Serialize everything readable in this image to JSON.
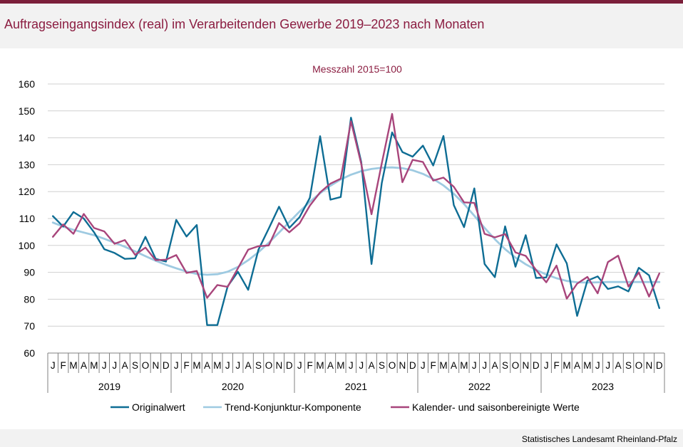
{
  "title": "Auftragseingangsindex (real) im Verarbeitenden Gewerbe 2019–2023 nach Monaten",
  "source": "Statistisches Landesamt Rheinland-Pfalz",
  "colors": {
    "original": "#0e6d94",
    "trend": "#9ecae1",
    "adjusted": "#a8457b",
    "title": "#8b1d41",
    "topbar": "#7b1f3a"
  },
  "chart_data": {
    "type": "line",
    "subtitle": "Messzahl 2015=100",
    "ylim": [
      60,
      160
    ],
    "yticks": [
      60,
      70,
      80,
      90,
      100,
      110,
      120,
      130,
      140,
      150,
      160
    ],
    "years": [
      "2019",
      "2020",
      "2021",
      "2022",
      "2023"
    ],
    "months": [
      "J",
      "F",
      "M",
      "A",
      "M",
      "J",
      "J",
      "A",
      "S",
      "O",
      "N",
      "D",
      "J",
      "F",
      "M",
      "A",
      "M",
      "J",
      "J",
      "A",
      "S",
      "O",
      "N",
      "D",
      "J",
      "F",
      "M",
      "A",
      "M",
      "J",
      "J",
      "A",
      "S",
      "O",
      "N",
      "D",
      "J",
      "F",
      "M",
      "A",
      "M",
      "J",
      "J",
      "A",
      "S",
      "O",
      "N",
      "D",
      "J",
      "F",
      "M",
      "A",
      "M",
      "J",
      "J",
      "A",
      "S",
      "O",
      "N",
      "D"
    ],
    "grid": true,
    "legend_position": "bottom",
    "series": [
      {
        "name": "Originalwert",
        "key": "original",
        "values": [
          110.9,
          107.0,
          112.4,
          110.0,
          104.9,
          98.6,
          97.2,
          95.0,
          95.2,
          103.2,
          95.0,
          94.0,
          109.5,
          103.3,
          107.6,
          70.4,
          70.4,
          84.8,
          90.2,
          83.5,
          98.4,
          106.3,
          114.4,
          106.5,
          110.5,
          117.7,
          140.6,
          117.0,
          118.0,
          147.5,
          131.0,
          93.1,
          123.2,
          142.0,
          134.7,
          133.0,
          137.1,
          129.7,
          140.7,
          115.0,
          106.8,
          121.2,
          93.1,
          88.2,
          107.1,
          92.1,
          103.8,
          87.9,
          88.1,
          100.4,
          93.3,
          73.8,
          86.9,
          88.5,
          83.8,
          84.8,
          82.9,
          91.7,
          88.9,
          76.7
        ]
      },
      {
        "name": "Trend-Konjunktur-Komponente",
        "key": "trend",
        "values": [
          108.5,
          107.0,
          105.8,
          104.8,
          103.8,
          102.5,
          101.0,
          99.5,
          97.8,
          96.0,
          94.3,
          92.8,
          91.5,
          90.3,
          89.4,
          89.1,
          89.3,
          90.2,
          92.0,
          94.5,
          97.5,
          101.0,
          104.8,
          108.7,
          112.6,
          116.2,
          119.4,
          122.2,
          124.5,
          126.3,
          127.6,
          128.4,
          128.9,
          129.0,
          128.7,
          127.9,
          126.6,
          124.7,
          122.3,
          119.2,
          115.4,
          111.0,
          106.5,
          102.3,
          98.6,
          95.5,
          93.0,
          90.9,
          89.2,
          87.8,
          86.8,
          86.3,
          86.2,
          86.3,
          86.4,
          86.4,
          86.4,
          86.4,
          86.4,
          86.4
        ]
      },
      {
        "name": "Kalender- und saisonbereinigte Werte",
        "key": "adjusted",
        "values": [
          103.2,
          107.8,
          104.3,
          111.7,
          106.5,
          105.2,
          100.6,
          102.0,
          96.5,
          99.2,
          94.5,
          94.7,
          96.4,
          89.8,
          90.5,
          80.5,
          85.3,
          84.6,
          91.5,
          98.4,
          99.7,
          100.0,
          108.3,
          104.9,
          108.2,
          114.8,
          119.7,
          123.0,
          124.8,
          146.1,
          130.3,
          111.6,
          130.5,
          148.9,
          123.5,
          131.8,
          131.0,
          124.1,
          125.2,
          121.8,
          116.0,
          115.8,
          104.3,
          103.0,
          104.2,
          97.4,
          96.1,
          90.9,
          86.3,
          92.5,
          80.2,
          85.8,
          88.3,
          82.2,
          93.8,
          96.2,
          84.7,
          90.0,
          81.0,
          89.6
        ]
      }
    ]
  }
}
